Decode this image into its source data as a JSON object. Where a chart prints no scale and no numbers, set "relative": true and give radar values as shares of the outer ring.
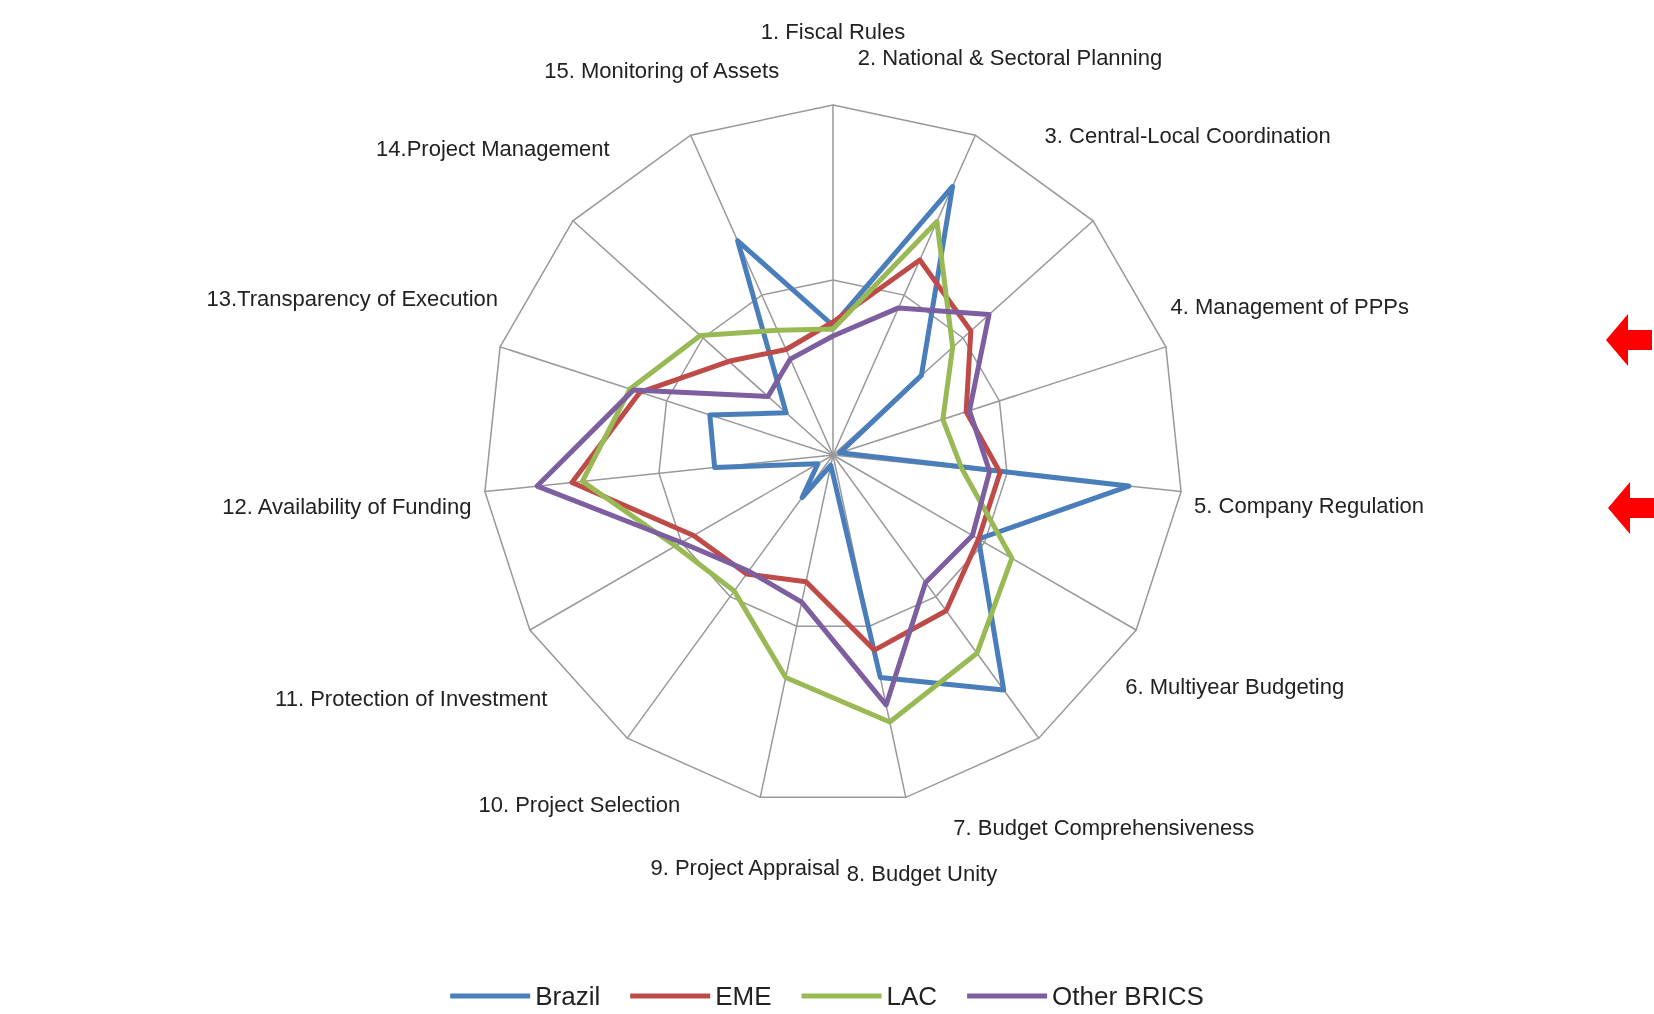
{
  "chart_data": {
    "type": "radar",
    "relative": true,
    "legend": "bottom",
    "marker": "none",
    "line_style": "solid",
    "categories": [
      "1. Fiscal Rules",
      "2. National & Sectoral Planning",
      "3. Central-Local Coordination",
      "4. Management of PPPs",
      "5. Company Regulation",
      "6. Multiyear Budgeting",
      "7. Budget Comprehensiveness",
      "8. Budget Unity",
      "9. Project Appraisal",
      "10. Project Selection",
      "11. Protection of Investment",
      "12. Availability of Funding",
      "13.Transparency of Execution",
      "14.Project Management",
      "15. Monitoring of Assets"
    ],
    "series": [
      {
        "name": "Brazil",
        "color": "#4a7ebb",
        "values": [
          0.37,
          0.84,
          0.34,
          0.02,
          0.85,
          0.48,
          0.83,
          0.65,
          0.03,
          0.15,
          0.05,
          0.34,
          0.37,
          0.18,
          0.67
        ]
      },
      {
        "name": "EME",
        "color": "#be4b48",
        "values": [
          0.38,
          0.61,
          0.53,
          0.4,
          0.48,
          0.48,
          0.55,
          0.57,
          0.37,
          0.42,
          0.46,
          0.75,
          0.58,
          0.4,
          0.33
        ]
      },
      {
        "name": "LAC",
        "color": "#98b954",
        "values": [
          0.36,
          0.73,
          0.46,
          0.33,
          0.37,
          0.59,
          0.7,
          0.78,
          0.65,
          0.48,
          0.52,
          0.72,
          0.61,
          0.51,
          0.39
        ]
      },
      {
        "name": "Other BRICS",
        "color": "#7d5fa0",
        "values": [
          0.34,
          0.46,
          0.6,
          0.41,
          0.45,
          0.46,
          0.45,
          0.73,
          0.43,
          0.41,
          0.5,
          0.85,
          0.6,
          0.25,
          0.3
        ]
      }
    ]
  }
}
